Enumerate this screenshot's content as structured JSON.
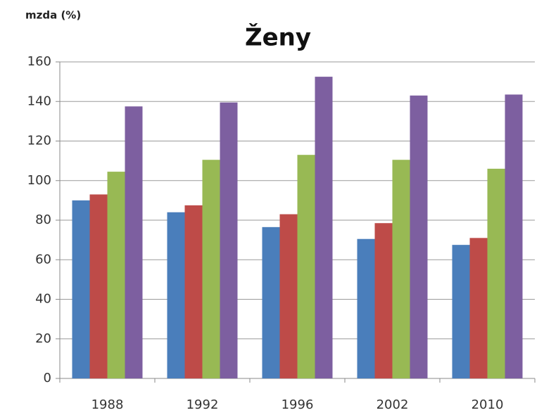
{
  "chart_data": {
    "type": "bar",
    "title": "Ženy",
    "y_label": "mzda (%)",
    "categories": [
      "1988",
      "1992",
      "1996",
      "2002",
      "2010"
    ],
    "series": [
      {
        "color": "#4a7ebb",
        "values": [
          90,
          84,
          76.5,
          70.5,
          67.5
        ]
      },
      {
        "color": "#be4b48",
        "values": [
          93,
          87.5,
          83,
          78.5,
          71
        ]
      },
      {
        "color": "#98b954",
        "values": [
          104.5,
          110.5,
          113,
          110.5,
          106
        ]
      },
      {
        "color": "#7d5fa0",
        "values": [
          137.5,
          139.5,
          152.5,
          143,
          143.5
        ]
      }
    ],
    "ylim": [
      0,
      160
    ],
    "yticks": [
      0,
      20,
      40,
      60,
      80,
      100,
      120,
      140,
      160
    ],
    "grid": true
  }
}
